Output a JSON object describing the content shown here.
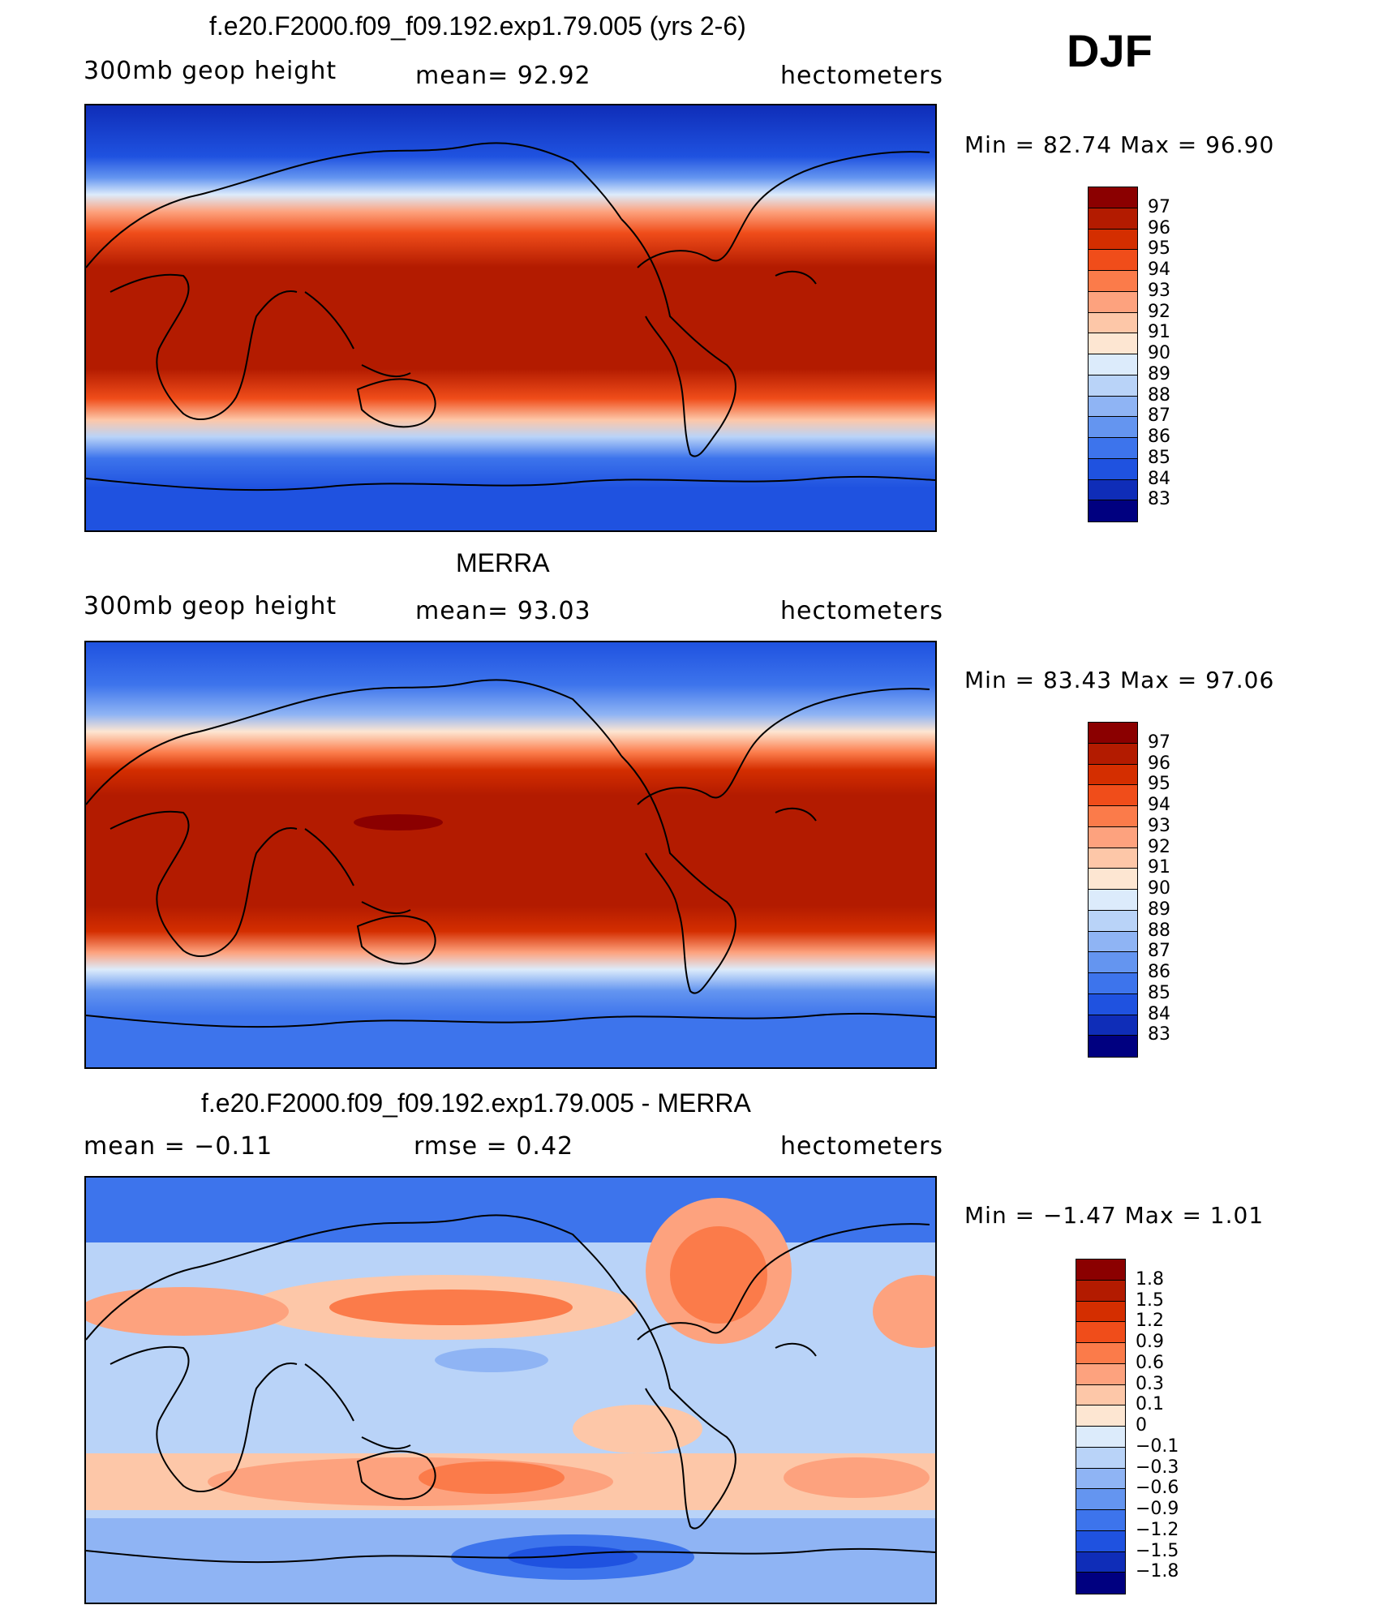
{
  "season": "DJF",
  "panels": [
    {
      "id": "model",
      "title": "f.e20.F2000.f09_f09.192.exp1.79.005 (yrs 2-6)",
      "left_label": "300mb  geop  height",
      "center_label": "mean=   92.92",
      "units": "hectometers",
      "minmax": "Min  =    82.74  Max  =    96.90",
      "colorbar": {
        "labels": [
          "97",
          "96",
          "95",
          "94",
          "93",
          "92",
          "91",
          "90",
          "89",
          "88",
          "87",
          "86",
          "85",
          "84",
          "83"
        ],
        "colors": [
          "#8b0000",
          "#b31b00",
          "#d42e00",
          "#f04d1a",
          "#fb7b4a",
          "#fda27e",
          "#fdc7a8",
          "#fde6d2",
          "#dcebfb",
          "#b9d3f8",
          "#8fb4f4",
          "#6495f0",
          "#3d74ec",
          "#1f52e0",
          "#0f2db8",
          "#000080"
        ]
      },
      "chart_data": {
        "type": "heatmap",
        "field": "300mb geopotential height",
        "units": "hectometers",
        "mean": 92.92,
        "min": 82.74,
        "max": 96.9,
        "levels": [
          83,
          84,
          85,
          86,
          87,
          88,
          89,
          90,
          91,
          92,
          93,
          94,
          95,
          96,
          97
        ]
      }
    },
    {
      "id": "obs",
      "title": "MERRA",
      "left_label": "300mb  geop  height",
      "center_label": "mean=   93.03",
      "units": "hectometers",
      "minmax": "Min  =    83.43  Max  =    97.06",
      "colorbar": {
        "labels": [
          "97",
          "96",
          "95",
          "94",
          "93",
          "92",
          "91",
          "90",
          "89",
          "88",
          "87",
          "86",
          "85",
          "84",
          "83"
        ],
        "colors": [
          "#8b0000",
          "#b31b00",
          "#d42e00",
          "#f04d1a",
          "#fb7b4a",
          "#fda27e",
          "#fdc7a8",
          "#fde6d2",
          "#dcebfb",
          "#b9d3f8",
          "#8fb4f4",
          "#6495f0",
          "#3d74ec",
          "#1f52e0",
          "#0f2db8",
          "#000080"
        ]
      },
      "chart_data": {
        "type": "heatmap",
        "field": "300mb geopotential height",
        "units": "hectometers",
        "mean": 93.03,
        "min": 83.43,
        "max": 97.06,
        "levels": [
          83,
          84,
          85,
          86,
          87,
          88,
          89,
          90,
          91,
          92,
          93,
          94,
          95,
          96,
          97
        ]
      }
    },
    {
      "id": "diff",
      "title": "f.e20.F2000.f09_f09.192.exp1.79.005 - MERRA",
      "left_label": "mean  =    −0.11",
      "center_label": "rmse  =     0.42",
      "units": "hectometers",
      "minmax": "Min  =    −1.47  Max  =      1.01",
      "colorbar": {
        "labels": [
          "1.8",
          "1.5",
          "1.2",
          "0.9",
          "0.6",
          "0.3",
          "0.1",
          "0",
          "−0.1",
          "−0.3",
          "−0.6",
          "−0.9",
          "−1.2",
          "−1.5",
          "−1.8"
        ],
        "colors": [
          "#8b0000",
          "#b31b00",
          "#d42e00",
          "#f04d1a",
          "#fb7b4a",
          "#fda27e",
          "#fdc7a8",
          "#fde6d2",
          "#dcebfb",
          "#b9d3f8",
          "#8fb4f4",
          "#6495f0",
          "#3d74ec",
          "#1f52e0",
          "#0f2db8",
          "#000080"
        ]
      },
      "chart_data": {
        "type": "heatmap",
        "field": "300mb geopotential height difference",
        "units": "hectometers",
        "mean": -0.11,
        "rmse": 0.42,
        "min": -1.47,
        "max": 1.01,
        "levels": [
          -1.8,
          -1.5,
          -1.2,
          -0.9,
          -0.6,
          -0.3,
          -0.1,
          0,
          0.1,
          0.3,
          0.6,
          0.9,
          1.2,
          1.5,
          1.8
        ]
      }
    }
  ]
}
